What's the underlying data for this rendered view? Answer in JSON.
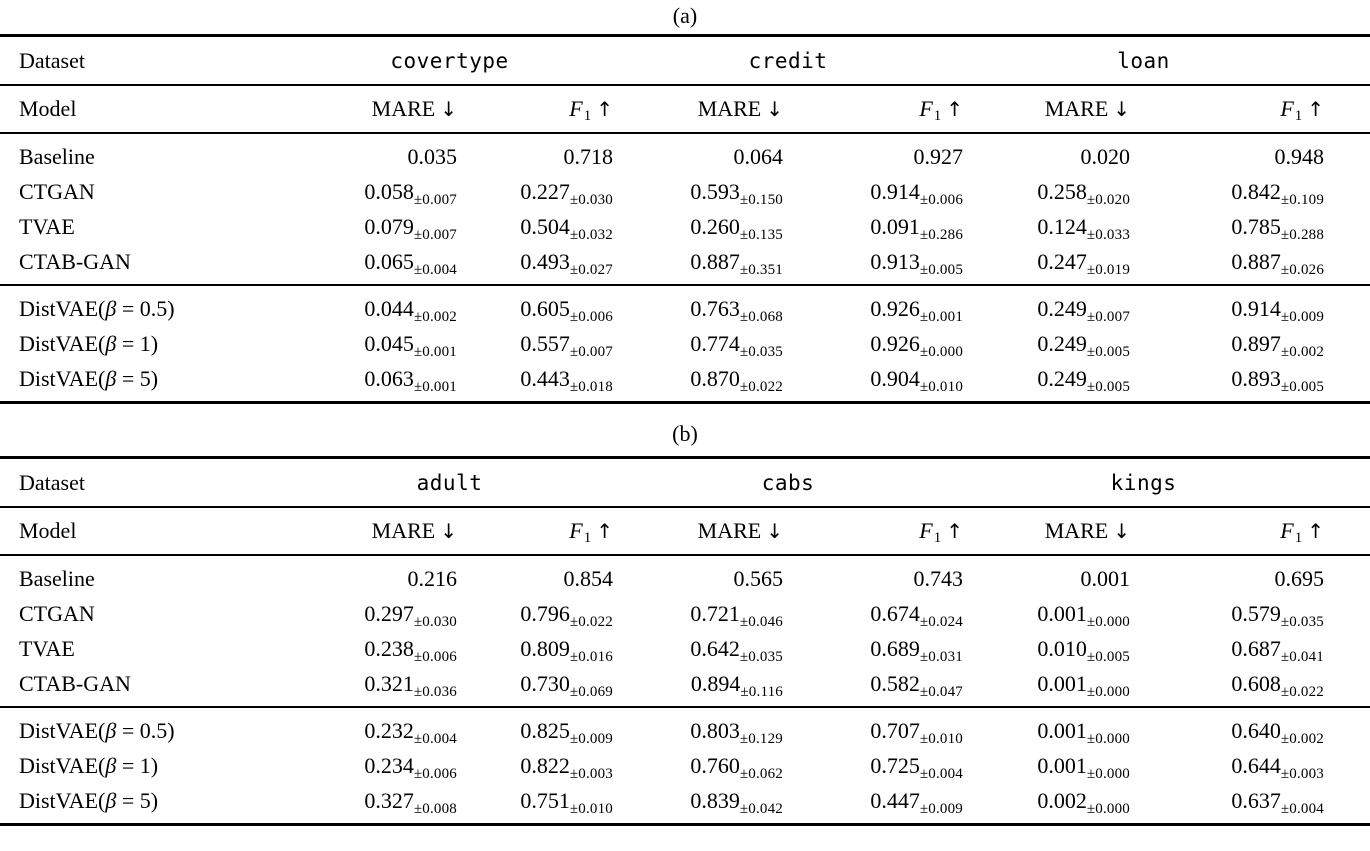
{
  "page": {
    "background": "#ffffff",
    "text_color": "#000000"
  },
  "metrics": {
    "mare": "MARE",
    "down_arrow": "↓",
    "f": "F",
    "f_sub": "1",
    "up_arrow": "↑"
  },
  "tables": [
    {
      "caption": "(a)",
      "header": {
        "dataset_label": "Dataset",
        "model_label": "Model"
      },
      "datasets": [
        "covertype",
        "credit",
        "loan"
      ],
      "groups": [
        {
          "rows": [
            {
              "model": "Baseline",
              "cells": [
                {
                  "v": "0.035"
                },
                {
                  "v": "0.718"
                },
                {
                  "v": "0.064"
                },
                {
                  "v": "0.927"
                },
                {
                  "v": "0.020"
                },
                {
                  "v": "0.948"
                }
              ]
            },
            {
              "model": "CTGAN",
              "cells": [
                {
                  "v": "0.058",
                  "pm": "±0.007"
                },
                {
                  "v": "0.227",
                  "pm": "±0.030"
                },
                {
                  "v": "0.593",
                  "pm": "±0.150"
                },
                {
                  "v": "0.914",
                  "pm": "±0.006"
                },
                {
                  "v": "0.258",
                  "pm": "±0.020"
                },
                {
                  "v": "0.842",
                  "pm": "±0.109"
                }
              ]
            },
            {
              "model": "TVAE",
              "cells": [
                {
                  "v": "0.079",
                  "pm": "±0.007"
                },
                {
                  "v": "0.504",
                  "pm": "±0.032"
                },
                {
                  "v": "0.260",
                  "pm": "±0.135"
                },
                {
                  "v": "0.091",
                  "pm": "±0.286"
                },
                {
                  "v": "0.124",
                  "pm": "±0.033"
                },
                {
                  "v": "0.785",
                  "pm": "±0.288"
                }
              ]
            },
            {
              "model": "CTAB-GAN",
              "cells": [
                {
                  "v": "0.065",
                  "pm": "±0.004"
                },
                {
                  "v": "0.493",
                  "pm": "±0.027"
                },
                {
                  "v": "0.887",
                  "pm": "±0.351"
                },
                {
                  "v": "0.913",
                  "pm": "±0.005"
                },
                {
                  "v": "0.247",
                  "pm": "±0.019"
                },
                {
                  "v": "0.887",
                  "pm": "±0.026"
                }
              ]
            }
          ]
        },
        {
          "rows": [
            {
              "model_parts": [
                "DistVAE(",
                "β",
                " = 0.5)"
              ],
              "cells": [
                {
                  "v": "0.044",
                  "pm": "±0.002"
                },
                {
                  "v": "0.605",
                  "pm": "±0.006"
                },
                {
                  "v": "0.763",
                  "pm": "±0.068"
                },
                {
                  "v": "0.926",
                  "pm": "±0.001"
                },
                {
                  "v": "0.249",
                  "pm": "±0.007"
                },
                {
                  "v": "0.914",
                  "pm": "±0.009"
                }
              ]
            },
            {
              "model_parts": [
                "DistVAE(",
                "β",
                " = 1)"
              ],
              "cells": [
                {
                  "v": "0.045",
                  "pm": "±0.001"
                },
                {
                  "v": "0.557",
                  "pm": "±0.007"
                },
                {
                  "v": "0.774",
                  "pm": "±0.035"
                },
                {
                  "v": "0.926",
                  "pm": "±0.000"
                },
                {
                  "v": "0.249",
                  "pm": "±0.005"
                },
                {
                  "v": "0.897",
                  "pm": "±0.002"
                }
              ]
            },
            {
              "model_parts": [
                "DistVAE(",
                "β",
                " = 5)"
              ],
              "cells": [
                {
                  "v": "0.063",
                  "pm": "±0.001"
                },
                {
                  "v": "0.443",
                  "pm": "±0.018"
                },
                {
                  "v": "0.870",
                  "pm": "±0.022"
                },
                {
                  "v": "0.904",
                  "pm": "±0.010"
                },
                {
                  "v": "0.249",
                  "pm": "±0.005"
                },
                {
                  "v": "0.893",
                  "pm": "±0.005"
                }
              ]
            }
          ]
        }
      ]
    },
    {
      "caption": "(b)",
      "header": {
        "dataset_label": "Dataset",
        "model_label": "Model"
      },
      "datasets": [
        "adult",
        "cabs",
        "kings"
      ],
      "groups": [
        {
          "rows": [
            {
              "model": "Baseline",
              "cells": [
                {
                  "v": "0.216"
                },
                {
                  "v": "0.854"
                },
                {
                  "v": "0.565"
                },
                {
                  "v": "0.743"
                },
                {
                  "v": "0.001"
                },
                {
                  "v": "0.695"
                }
              ]
            },
            {
              "model": "CTGAN",
              "cells": [
                {
                  "v": "0.297",
                  "pm": "±0.030"
                },
                {
                  "v": "0.796",
                  "pm": "±0.022"
                },
                {
                  "v": "0.721",
                  "pm": "±0.046"
                },
                {
                  "v": "0.674",
                  "pm": "±0.024"
                },
                {
                  "v": "0.001",
                  "pm": "±0.000"
                },
                {
                  "v": "0.579",
                  "pm": "±0.035"
                }
              ]
            },
            {
              "model": "TVAE",
              "cells": [
                {
                  "v": "0.238",
                  "pm": "±0.006"
                },
                {
                  "v": "0.809",
                  "pm": "±0.016"
                },
                {
                  "v": "0.642",
                  "pm": "±0.035"
                },
                {
                  "v": "0.689",
                  "pm": "±0.031"
                },
                {
                  "v": "0.010",
                  "pm": "±0.005"
                },
                {
                  "v": "0.687",
                  "pm": "±0.041"
                }
              ]
            },
            {
              "model": "CTAB-GAN",
              "cells": [
                {
                  "v": "0.321",
                  "pm": "±0.036"
                },
                {
                  "v": "0.730",
                  "pm": "±0.069"
                },
                {
                  "v": "0.894",
                  "pm": "±0.116"
                },
                {
                  "v": "0.582",
                  "pm": "±0.047"
                },
                {
                  "v": "0.001",
                  "pm": "±0.000"
                },
                {
                  "v": "0.608",
                  "pm": "±0.022"
                }
              ]
            }
          ]
        },
        {
          "rows": [
            {
              "model_parts": [
                "DistVAE(",
                "β",
                " = 0.5)"
              ],
              "cells": [
                {
                  "v": "0.232",
                  "pm": "±0.004"
                },
                {
                  "v": "0.825",
                  "pm": "±0.009"
                },
                {
                  "v": "0.803",
                  "pm": "±0.129"
                },
                {
                  "v": "0.707",
                  "pm": "±0.010"
                },
                {
                  "v": "0.001",
                  "pm": "±0.000"
                },
                {
                  "v": "0.640",
                  "pm": "±0.002"
                }
              ]
            },
            {
              "model_parts": [
                "DistVAE(",
                "β",
                " = 1)"
              ],
              "cells": [
                {
                  "v": "0.234",
                  "pm": "±0.006"
                },
                {
                  "v": "0.822",
                  "pm": "±0.003"
                },
                {
                  "v": "0.760",
                  "pm": "±0.062"
                },
                {
                  "v": "0.725",
                  "pm": "±0.004"
                },
                {
                  "v": "0.001",
                  "pm": "±0.000"
                },
                {
                  "v": "0.644",
                  "pm": "±0.003"
                }
              ]
            },
            {
              "model_parts": [
                "DistVAE(",
                "β",
                " = 5)"
              ],
              "cells": [
                {
                  "v": "0.327",
                  "pm": "±0.008"
                },
                {
                  "v": "0.751",
                  "pm": "±0.010"
                },
                {
                  "v": "0.839",
                  "pm": "±0.042"
                },
                {
                  "v": "0.447",
                  "pm": "±0.009"
                },
                {
                  "v": "0.002",
                  "pm": "±0.000"
                },
                {
                  "v": "0.637",
                  "pm": "±0.004"
                }
              ]
            }
          ]
        }
      ]
    }
  ]
}
